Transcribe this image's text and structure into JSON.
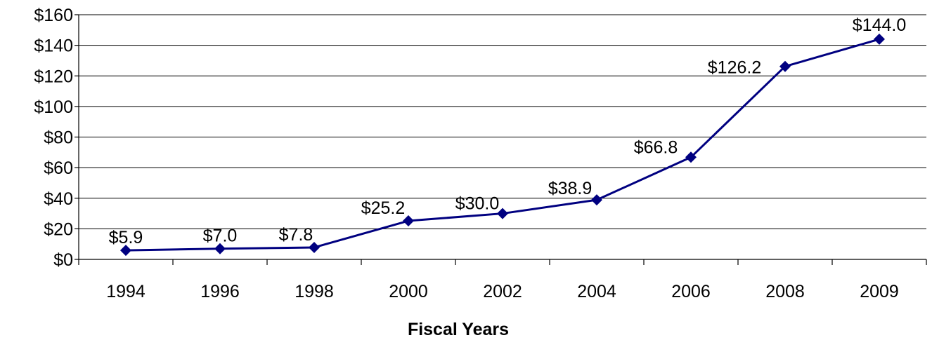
{
  "chart_data": {
    "type": "line",
    "title": "",
    "xlabel": "Fiscal Years",
    "ylabel": "",
    "categories": [
      "1994",
      "1996",
      "1998",
      "2000",
      "2002",
      "2004",
      "2006",
      "2008",
      "2009"
    ],
    "series": [
      {
        "values": [
          5.9,
          7.0,
          7.8,
          25.2,
          30.0,
          38.9,
          66.8,
          126.2,
          144.0
        ],
        "labels": [
          "$5.9",
          "$7.0",
          "$7.8",
          "$25.2",
          "$30.0",
          "$38.9",
          "$66.8",
          "$126.2",
          "$144.0"
        ],
        "color": "#000080"
      }
    ],
    "ylim": [
      0,
      160
    ],
    "yticks": [
      0,
      20,
      40,
      60,
      80,
      100,
      120,
      140,
      160
    ],
    "ytick_labels": [
      "$0",
      "$20",
      "$40",
      "$60",
      "$80",
      "$100",
      "$120",
      "$140",
      "$160"
    ],
    "grid": true,
    "legend": "none"
  }
}
